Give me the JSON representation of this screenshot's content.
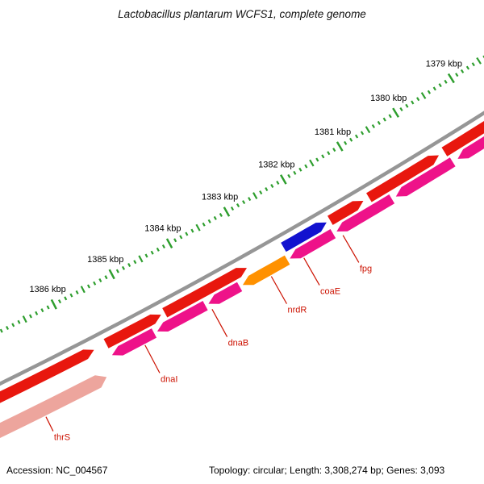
{
  "title": "Lactobacillus plantarum WCFS1, complete genome",
  "footer": {
    "accession": "Accession: NC_004567",
    "topology": "Topology: circular; Length: 3,308,274 bp; Genes: 3,093"
  },
  "colors": {
    "forward": "#e8170e",
    "reverse": "#ee1289",
    "orange": "#ff9100",
    "blue": "#1212cf",
    "special": "#eda59d",
    "backbone": "#969696",
    "tick": "#2e9e2e",
    "tick_label": "#000000",
    "gene_label": "#cc1100"
  },
  "chart_data": {
    "type": "genome-map-arc",
    "organism": "Lactobacillus plantarum WCFS1",
    "accession": "NC_004567",
    "topology": "circular",
    "length_bp": 3308274,
    "genes_count": 3093,
    "visible_region_kbp": [
      1379,
      1386
    ],
    "tick_unit": "kbp",
    "minor_tick_step_t": 0.01116,
    "major_ticks": [
      {
        "kbp": 1379,
        "label": "1379 kbp",
        "t": 0.953
      },
      {
        "kbp": 1380,
        "label": "1380 kbp",
        "t": 0.8414
      },
      {
        "kbp": 1381,
        "label": "1381 kbp",
        "t": 0.7298
      },
      {
        "kbp": 1382,
        "label": "1382 kbp",
        "t": 0.6182
      },
      {
        "kbp": 1383,
        "label": "1383 kbp",
        "t": 0.5066
      },
      {
        "kbp": 1384,
        "label": "1384 kbp",
        "t": 0.395
      },
      {
        "kbp": 1385,
        "label": "1385 kbp",
        "t": 0.2834
      },
      {
        "kbp": 1386,
        "label": "1386 kbp",
        "t": 0.1718
      }
    ],
    "genes": [
      {
        "track": "forward",
        "color": "forward",
        "t1": -0.05,
        "t2": 0.197,
        "arrow": "end"
      },
      {
        "track": "forward",
        "color": "forward",
        "t1": 0.22,
        "t2": 0.325,
        "arrow": "end"
      },
      {
        "track": "forward",
        "color": "forward",
        "t1": 0.332,
        "t2": 0.49,
        "arrow": "end"
      },
      {
        "name": "coaE",
        "track": "forward",
        "color": "blue",
        "t1": 0.561,
        "t2": 0.645,
        "arrow": "end"
      },
      {
        "track": "forward",
        "color": "forward",
        "t1": 0.652,
        "t2": 0.717,
        "arrow": "end"
      },
      {
        "track": "forward",
        "color": "forward",
        "t1": 0.728,
        "t2": 0.866,
        "arrow": "end"
      },
      {
        "track": "forward",
        "color": "forward",
        "t1": 0.877,
        "t2": 1.06,
        "arrow": "end"
      },
      {
        "name": "dnaI",
        "track": "reverse",
        "color": "reverse",
        "t1": 0.22,
        "t2": 0.3,
        "arrow": "start"
      },
      {
        "track": "reverse",
        "color": "reverse",
        "t1": 0.306,
        "t2": 0.398,
        "arrow": "start"
      },
      {
        "name": "dnaB",
        "track": "reverse",
        "color": "reverse",
        "t1": 0.404,
        "t2": 0.464,
        "arrow": "start"
      },
      {
        "name": "nrdR",
        "track": "reverse",
        "color": "orange",
        "t1": 0.47,
        "t2": 0.556,
        "arrow": "start"
      },
      {
        "track": "reverse",
        "color": "reverse",
        "t1": 0.561,
        "t2": 0.645,
        "arrow": "start"
      },
      {
        "name": "fpg",
        "track": "reverse",
        "color": "reverse",
        "t1": 0.652,
        "t2": 0.76,
        "arrow": "start"
      },
      {
        "track": "reverse",
        "color": "reverse",
        "t1": 0.768,
        "t2": 0.88,
        "arrow": "start"
      },
      {
        "track": "reverse",
        "color": "reverse",
        "t1": 0.89,
        "t2": 1.06,
        "arrow": "start"
      },
      {
        "name": "thrS",
        "track": "special",
        "color": "special",
        "t1": -0.05,
        "t2": 0.195,
        "arrow": "end"
      }
    ],
    "gene_labels": [
      {
        "name": "thrS",
        "t": 0.074,
        "r0": 62,
        "r1": 82
      },
      {
        "name": "dnaI",
        "t": 0.277,
        "r0": 39,
        "r1": 78
      },
      {
        "name": "dnaB",
        "t": 0.405,
        "r0": 39,
        "r1": 78
      },
      {
        "name": "nrdR",
        "t": 0.519,
        "r0": 39,
        "r1": 78
      },
      {
        "name": "coaE",
        "t": 0.582,
        "r0": 39,
        "r1": 78
      },
      {
        "name": "fpg",
        "t": 0.658,
        "r0": 39,
        "r1": 78
      }
    ]
  }
}
